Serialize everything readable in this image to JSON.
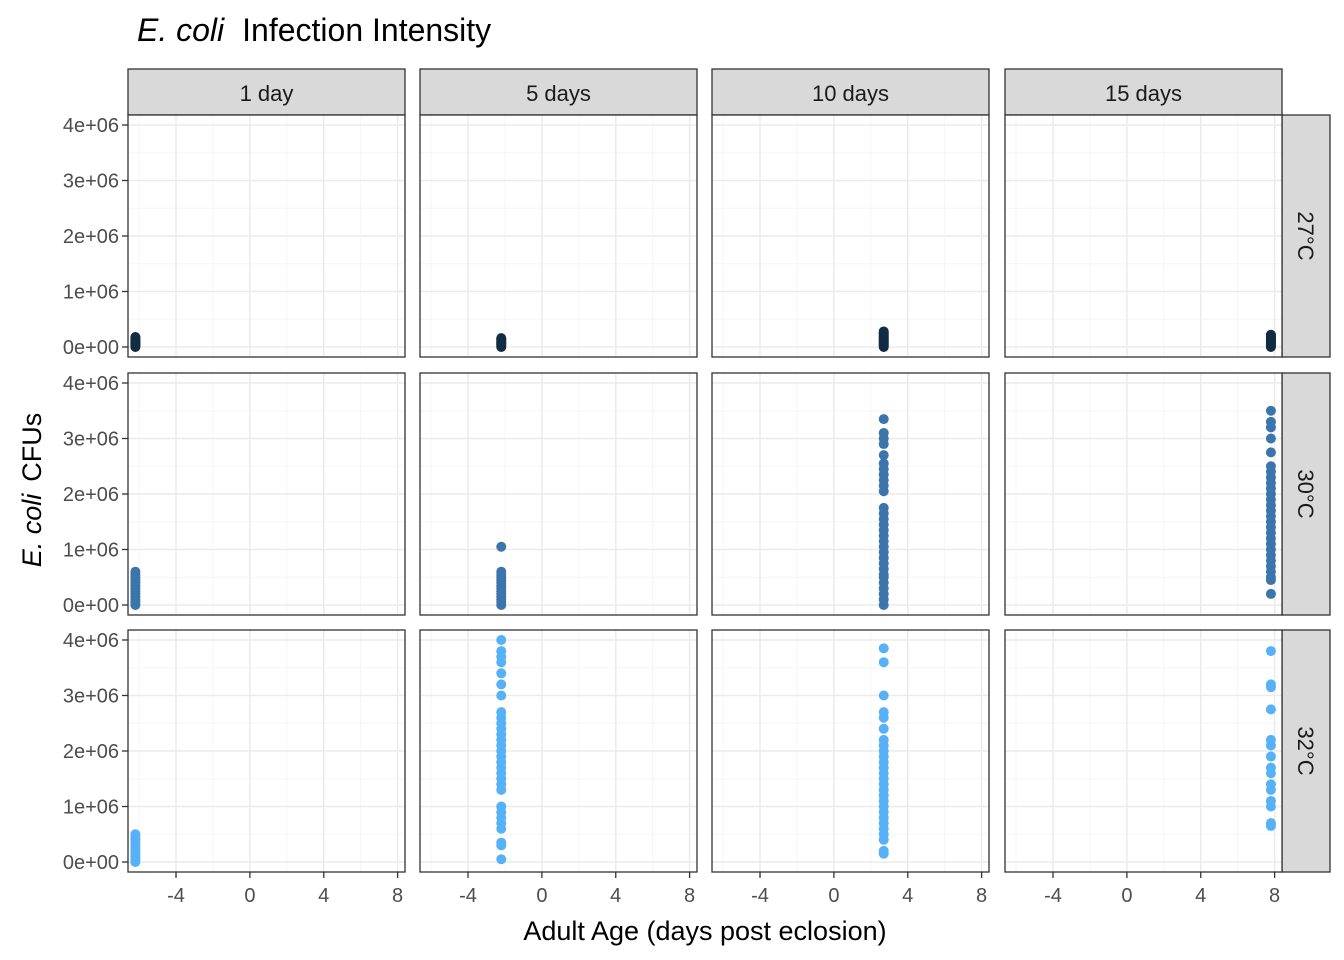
{
  "chart_data": {
    "type": "scatter",
    "title": {
      "italic": "E. coli",
      "rest": "Infection Intensity"
    },
    "xlabel": "Adult Age (days post eclosion)",
    "ylabel": {
      "italic": "E. coli",
      "rest": "CFUs"
    },
    "xlim": [
      -6.6,
      8.4
    ],
    "ylim": [
      -180000,
      4180000
    ],
    "x_ticks": [
      -4,
      0,
      4,
      8
    ],
    "x_tick_labels": [
      "-4",
      "0",
      "4",
      "8"
    ],
    "y_ticks": [
      0,
      1000000,
      2000000,
      3000000,
      4000000
    ],
    "y_tick_labels": [
      "0e+00",
      "1e+06",
      "2e+06",
      "3e+06",
      "4e+06"
    ],
    "columns": [
      "1 day",
      "5 days",
      "10 days",
      "15 days"
    ],
    "rows": [
      "27°C",
      "30°C",
      "32°C"
    ],
    "grid": true,
    "colors": {
      "27°C": "#132b43",
      "30°C": "#3b75ab",
      "32°C": "#56b1f7",
      "strip_fill": "#d9d9d9",
      "grid_major": "#ebebeb",
      "grid_minor": "#f5f5f5",
      "panel_border": "#333333"
    },
    "panels": [
      {
        "row": "27°C",
        "col": "1 day",
        "x": -6.2,
        "y": [
          0,
          20000,
          40000,
          60000,
          80000,
          100000,
          120000,
          140000,
          160000,
          180000
        ]
      },
      {
        "row": "27°C",
        "col": "5 days",
        "x": -2.2,
        "y": [
          0,
          20000,
          40000,
          60000,
          80000,
          100000,
          120000,
          140000,
          160000
        ]
      },
      {
        "row": "27°C",
        "col": "10 days",
        "x": 2.7,
        "y": [
          0,
          20000,
          40000,
          60000,
          80000,
          100000,
          120000,
          140000,
          160000,
          180000,
          200000,
          220000,
          240000,
          260000,
          280000
        ]
      },
      {
        "row": "27°C",
        "col": "15 days",
        "x": 7.8,
        "y": [
          0,
          20000,
          40000,
          60000,
          80000,
          100000,
          120000,
          140000,
          160000,
          180000,
          200000,
          220000
        ]
      },
      {
        "row": "30°C",
        "col": "1 day",
        "x": -6.2,
        "y": [
          0,
          50000,
          100000,
          150000,
          200000,
          250000,
          300000,
          350000,
          400000,
          450000,
          500000,
          550000,
          600000
        ]
      },
      {
        "row": "30°C",
        "col": "5 days",
        "x": -2.2,
        "y": [
          0,
          50000,
          100000,
          150000,
          200000,
          250000,
          300000,
          350000,
          400000,
          450000,
          500000,
          550000,
          600000,
          1050000
        ]
      },
      {
        "row": "30°C",
        "col": "10 days",
        "x": 2.7,
        "y": [
          0,
          100000,
          200000,
          300000,
          400000,
          500000,
          550000,
          650000,
          750000,
          850000,
          950000,
          1050000,
          1150000,
          1250000,
          1350000,
          1450000,
          1550000,
          1650000,
          1750000,
          2050000,
          2150000,
          2250000,
          2350000,
          2450000,
          2550000,
          2700000,
          2900000,
          3000000,
          3100000,
          3350000
        ]
      },
      {
        "row": "30°C",
        "col": "15 days",
        "x": 7.8,
        "y": [
          200000,
          450000,
          500000,
          600000,
          700000,
          800000,
          900000,
          1000000,
          1100000,
          1200000,
          1300000,
          1400000,
          1500000,
          1600000,
          1700000,
          1800000,
          1900000,
          2000000,
          2100000,
          2200000,
          2300000,
          2400000,
          2500000,
          2750000,
          3000000,
          3200000,
          3300000,
          3500000
        ]
      },
      {
        "row": "32°C",
        "col": "1 day",
        "x": -6.2,
        "y": [
          0,
          50000,
          100000,
          150000,
          200000,
          250000,
          300000,
          350000,
          400000,
          450000,
          500000
        ]
      },
      {
        "row": "32°C",
        "col": "5 days",
        "x": -2.2,
        "y": [
          50000,
          300000,
          350000,
          600000,
          700000,
          800000,
          900000,
          1000000,
          1300000,
          1400000,
          1500000,
          1600000,
          1700000,
          1800000,
          1900000,
          2000000,
          2100000,
          2200000,
          2300000,
          2400000,
          2500000,
          2600000,
          2700000,
          3000000,
          3200000,
          3400000,
          3600000,
          3700000,
          3800000,
          4000000
        ]
      },
      {
        "row": "32°C",
        "col": "10 days",
        "x": 2.7,
        "y": [
          150000,
          200000,
          400000,
          500000,
          600000,
          700000,
          800000,
          900000,
          1000000,
          1100000,
          1200000,
          1300000,
          1400000,
          1500000,
          1600000,
          1700000,
          1800000,
          1900000,
          2000000,
          2100000,
          2200000,
          2400000,
          2600000,
          2700000,
          3000000,
          3600000,
          3850000
        ]
      },
      {
        "row": "32°C",
        "col": "15 days",
        "x": 7.8,
        "y": [
          650000,
          700000,
          1000000,
          1100000,
          1300000,
          1400000,
          1600000,
          1700000,
          1900000,
          2100000,
          2200000,
          2750000,
          3150000,
          3200000,
          3800000
        ]
      }
    ]
  }
}
